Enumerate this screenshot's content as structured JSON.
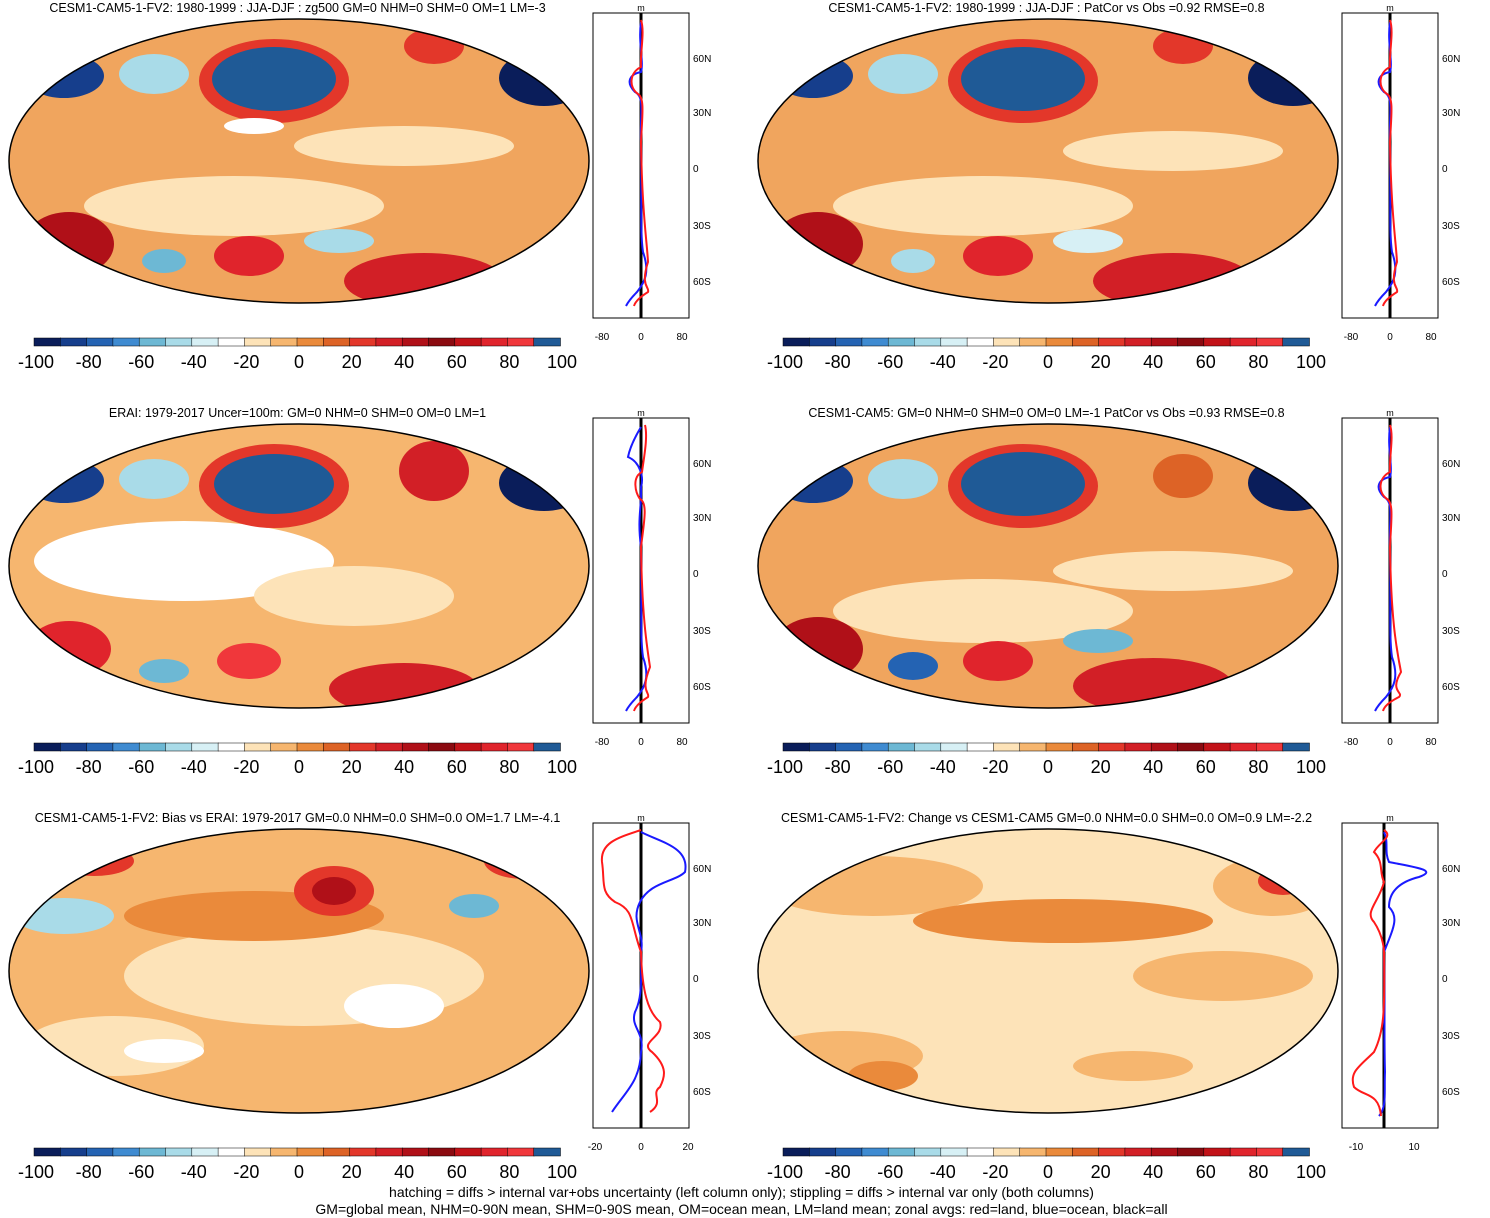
{
  "colorbar": {
    "ticks": [
      "-100",
      "-80",
      "-60",
      "-40",
      "-20",
      "0",
      "20",
      "40",
      "60",
      "80",
      "100"
    ],
    "colors": [
      "#0a1d5a",
      "#163e8c",
      "#2463b3",
      "#3f8bd1",
      "#6db8d4",
      "#a9dbe8",
      "#d7f0f5",
      "#ffffff",
      "#fde3b8",
      "#f6b66f",
      "#ea8a3b",
      "#dd6326",
      "#e3372a",
      "#d21f26",
      "#b01018",
      "#8b0a10",
      "#c21218",
      "#e0242c",
      "#f0373b",
      "#1f5a96"
    ]
  },
  "zonal_axis": {
    "unit": "m",
    "lat_labels": [
      "60N",
      "30N",
      "0",
      "30S",
      "60S"
    ],
    "range_labels": [
      "-80",
      "0",
      "80"
    ],
    "range_labels_bias": [
      "-20",
      "0",
      "20"
    ],
    "range_labels_change": [
      "-10",
      "10"
    ]
  },
  "legend_colors": {
    "land": "#ff1a1a",
    "ocean": "#1a1aff",
    "all": "#000000"
  },
  "panels": [
    {
      "id": "p1",
      "title": "CESM1-CAM5-1-FV2: 1980-1999 : JJA-DJF : zg500 GM=0 NHM=0 SHM=0 OM=1 LM=-3"
    },
    {
      "id": "p2",
      "title": "CESM1-CAM5-1-FV2: 1980-1999 : JJA-DJF : PatCor vs Obs =0.92 RMSE=0.8"
    },
    {
      "id": "p3",
      "title": "ERAI: 1979-2017 Uncer=100m: GM=0 NHM=0 SHM=0 OM=0 LM=1"
    },
    {
      "id": "p4",
      "title": "CESM1-CAM5: GM=0 NHM=0 SHM=0 OM=0 LM=-1 PatCor vs Obs =0.93 RMSE=0.8"
    },
    {
      "id": "p5",
      "title": "CESM1-CAM5-1-FV2: Bias vs ERAI: 1979-2017 GM=0.0 NHM=0.0 SHM=0.0 OM=1.7 LM=-4.1"
    },
    {
      "id": "p6",
      "title": "CESM1-CAM5-1-FV2: Change vs CESM1-CAM5 GM=0.0 NHM=0.0 SHM=0.0 OM=0.9 LM=-2.2"
    }
  ],
  "footer": {
    "line1": "hatching = diffs > internal var+obs uncertainty (left column only); stippling = diffs > internal var only (both columns)",
    "line2": "GM=global mean, NHM=0-90N mean, SHM=0-90S mean, OM=ocean mean, LM=land mean; zonal avgs: red=land, blue=ocean, black=all"
  }
}
